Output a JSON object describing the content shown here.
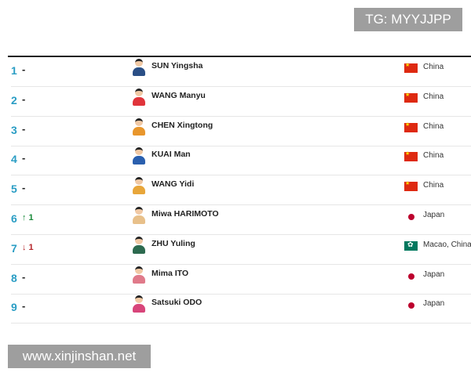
{
  "watermark_top": "TG: MYYJJPP",
  "watermark_bottom": "www.xinjinshan.net",
  "rankings": [
    {
      "rank": "1",
      "change": "-",
      "trend": "none",
      "name": "SUN Yingsha",
      "country": "China",
      "flag": "china",
      "kit": "#2a4f86"
    },
    {
      "rank": "2",
      "change": "-",
      "trend": "none",
      "name": "WANG Manyu",
      "country": "China",
      "flag": "china",
      "kit": "#e0343b"
    },
    {
      "rank": "3",
      "change": "-",
      "trend": "none",
      "name": "CHEN Xingtong",
      "country": "China",
      "flag": "china",
      "kit": "#e8962c"
    },
    {
      "rank": "4",
      "change": "-",
      "trend": "none",
      "name": "KUAI Man",
      "country": "China",
      "flag": "china",
      "kit": "#2a5fae"
    },
    {
      "rank": "5",
      "change": "-",
      "trend": "none",
      "name": "WANG Yidi",
      "country": "China",
      "flag": "china",
      "kit": "#e8a63a"
    },
    {
      "rank": "6",
      "change": "↑ 1",
      "trend": "up",
      "name": "Miwa HARIMOTO",
      "country": "Japan",
      "flag": "japan",
      "kit": "#e8c08a"
    },
    {
      "rank": "7",
      "change": "↓ 1",
      "trend": "down",
      "name": "ZHU Yuling",
      "country": "Macao, China",
      "flag": "macao",
      "kit": "#2d6a4f"
    },
    {
      "rank": "8",
      "change": "-",
      "trend": "none",
      "name": "Mima ITO",
      "country": "Japan",
      "flag": "japan",
      "kit": "#e07a8a"
    },
    {
      "rank": "9",
      "change": "-",
      "trend": "none",
      "name": "Satsuki ODO",
      "country": "Japan",
      "flag": "japan",
      "kit": "#d8457a"
    }
  ]
}
